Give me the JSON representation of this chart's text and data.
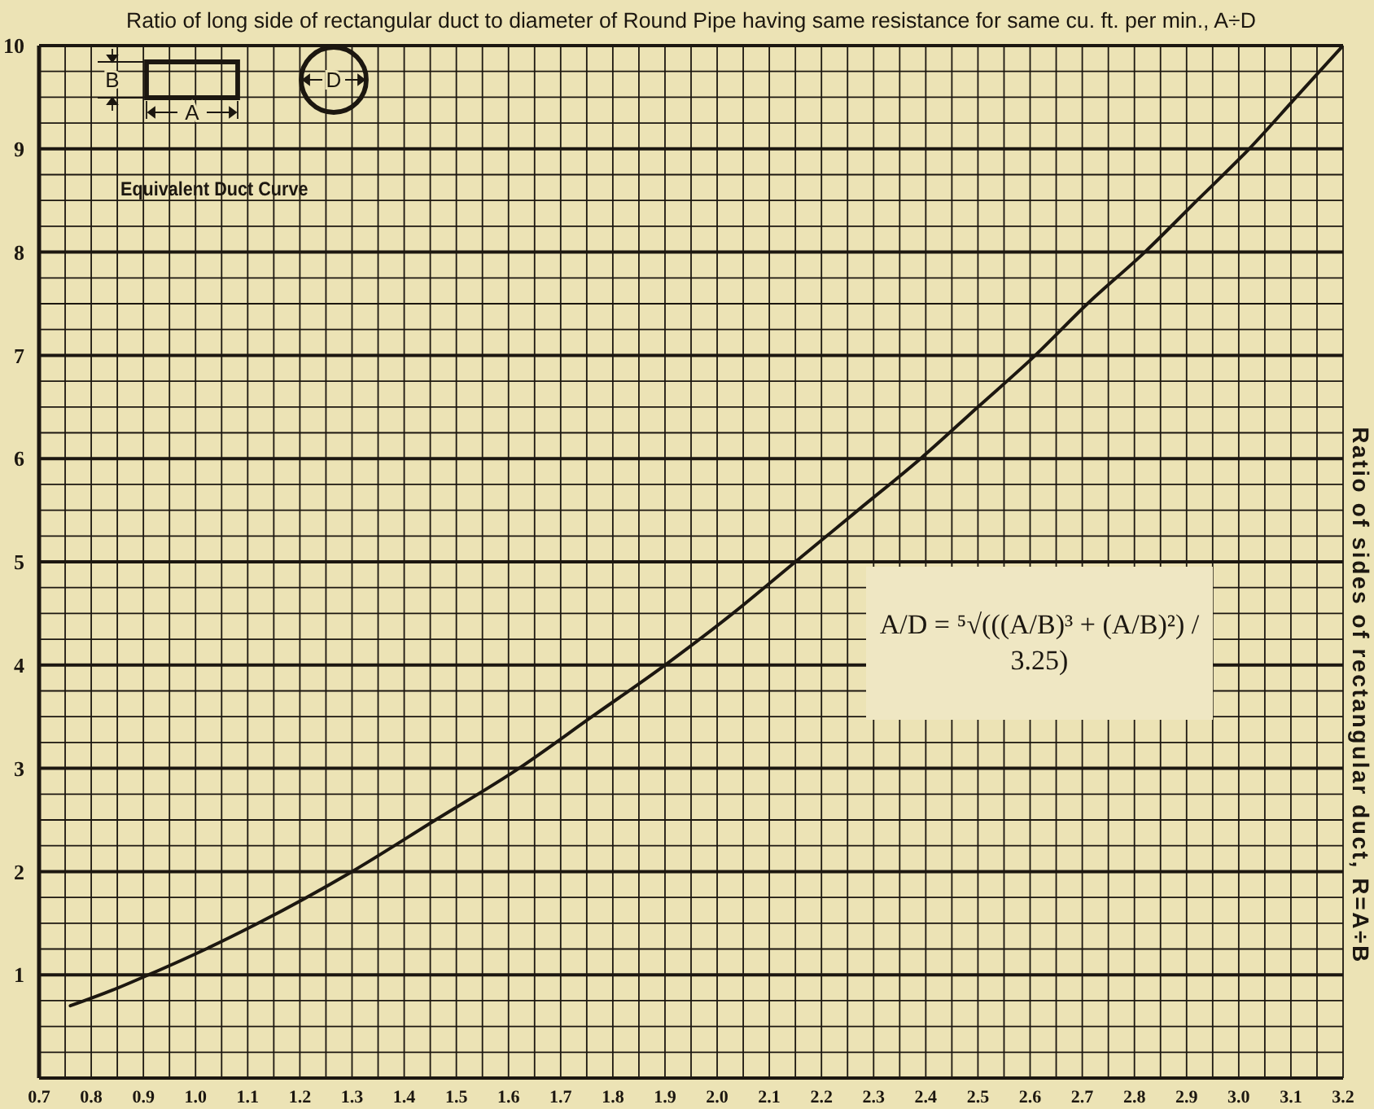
{
  "chart_data": {
    "type": "line",
    "xlabel": "Ratio of long side of rectangular duct to diameter of Round Pipe having same resistance for same cu. ft. per min., A÷D",
    "ylabel": "Ratio of sides of rectangular duct, R=A÷B",
    "annotations": [
      "Equivalent Duct Curve",
      "A/D = ⁵√(((A/B)³ + (A/B)²) / 3.25)",
      "B",
      "A",
      "D"
    ],
    "x": [
      0.76,
      0.84,
      0.91,
      1.02,
      1.12,
      1.3,
      1.46,
      1.62,
      1.76,
      1.9,
      2.03,
      2.15,
      2.27,
      2.39,
      2.5,
      2.61,
      2.71,
      2.82,
      2.92,
      3.02,
      3.11,
      3.2
    ],
    "series": [
      {
        "color": "#1c1710",
        "values": [
          0.7,
          0.85,
          1,
          1.25,
          1.5,
          2,
          2.5,
          3,
          3.5,
          4,
          4.5,
          5,
          5.5,
          6,
          6.5,
          7,
          7.5,
          8,
          8.5,
          9,
          9.5,
          10
        ]
      }
    ],
    "xlim": [
      0.7,
      3.2
    ],
    "ylim": [
      0,
      10
    ],
    "xticks": [
      0.7,
      {
        "value": 0.75,
        "label": null
      },
      0.8,
      {
        "value": 0.85,
        "label": null
      },
      0.9,
      {
        "value": 0.95,
        "label": null
      },
      {
        "value": 1,
        "label": "1.0"
      },
      {
        "value": 1.05,
        "label": null
      },
      1.1,
      {
        "value": 1.15,
        "label": null
      },
      1.2,
      {
        "value": 1.25,
        "label": null
      },
      1.3,
      {
        "value": 1.35,
        "label": null
      },
      1.4,
      {
        "value": 1.45,
        "label": null
      },
      1.5,
      {
        "value": 1.55,
        "label": null
      },
      1.6,
      {
        "value": 1.65,
        "label": null
      },
      1.7,
      {
        "value": 1.75,
        "label": null
      },
      1.8,
      {
        "value": 1.85,
        "label": null
      },
      1.9,
      {
        "value": 1.95,
        "label": null
      },
      {
        "value": 2,
        "label": "2.0"
      },
      {
        "value": 2.05,
        "label": null
      },
      2.1,
      {
        "value": 2.15,
        "label": null
      },
      2.2,
      {
        "value": 2.25,
        "label": null
      },
      2.3,
      {
        "value": 2.35,
        "label": null
      },
      2.4,
      {
        "value": 2.45,
        "label": null
      },
      2.5,
      {
        "value": 2.55,
        "label": null
      },
      2.6,
      {
        "value": 2.65,
        "label": null
      },
      2.7,
      {
        "value": 2.75,
        "label": null
      },
      2.8,
      {
        "value": 2.85,
        "label": null
      },
      2.9,
      {
        "value": 2.95,
        "label": null
      },
      {
        "value": 3,
        "label": "3.0"
      },
      {
        "value": 3.05,
        "label": null
      },
      3.1,
      {
        "value": 3.15,
        "label": null
      },
      3.2
    ],
    "yticks": [
      {
        "value": 0,
        "label": null
      },
      {
        "value": 0.25,
        "label": null
      },
      {
        "value": 0.5,
        "label": null
      },
      {
        "value": 0.75,
        "label": null
      },
      1,
      {
        "value": 1.25,
        "label": null
      },
      {
        "value": 1.5,
        "label": null
      },
      {
        "value": 1.75,
        "label": null
      },
      2,
      {
        "value": 2.25,
        "label": null
      },
      {
        "value": 2.5,
        "label": null
      },
      {
        "value": 2.75,
        "label": null
      },
      3,
      {
        "value": 3.25,
        "label": null
      },
      {
        "value": 3.5,
        "label": null
      },
      {
        "value": 3.75,
        "label": null
      },
      4,
      {
        "value": 4.25,
        "label": null
      },
      {
        "value": 4.5,
        "label": null
      },
      {
        "value": 4.75,
        "label": null
      },
      5,
      {
        "value": 5.25,
        "label": null
      },
      {
        "value": 5.5,
        "label": null
      },
      {
        "value": 5.75,
        "label": null
      },
      6,
      {
        "value": 6.25,
        "label": null
      },
      {
        "value": 6.5,
        "label": null
      },
      {
        "value": 6.75,
        "label": null
      },
      7,
      {
        "value": 7.25,
        "label": null
      },
      {
        "value": 7.5,
        "label": null
      },
      {
        "value": 7.75,
        "label": null
      },
      8,
      {
        "value": 8.25,
        "label": null
      },
      {
        "value": 8.5,
        "label": null
      },
      {
        "value": 8.75,
        "label": null
      },
      9,
      {
        "value": 9.25,
        "label": null
      },
      {
        "value": 9.5,
        "label": null
      },
      {
        "value": 9.75,
        "label": null
      },
      10
    ],
    "grid": true,
    "marker": "none",
    "line_style": "solid"
  }
}
